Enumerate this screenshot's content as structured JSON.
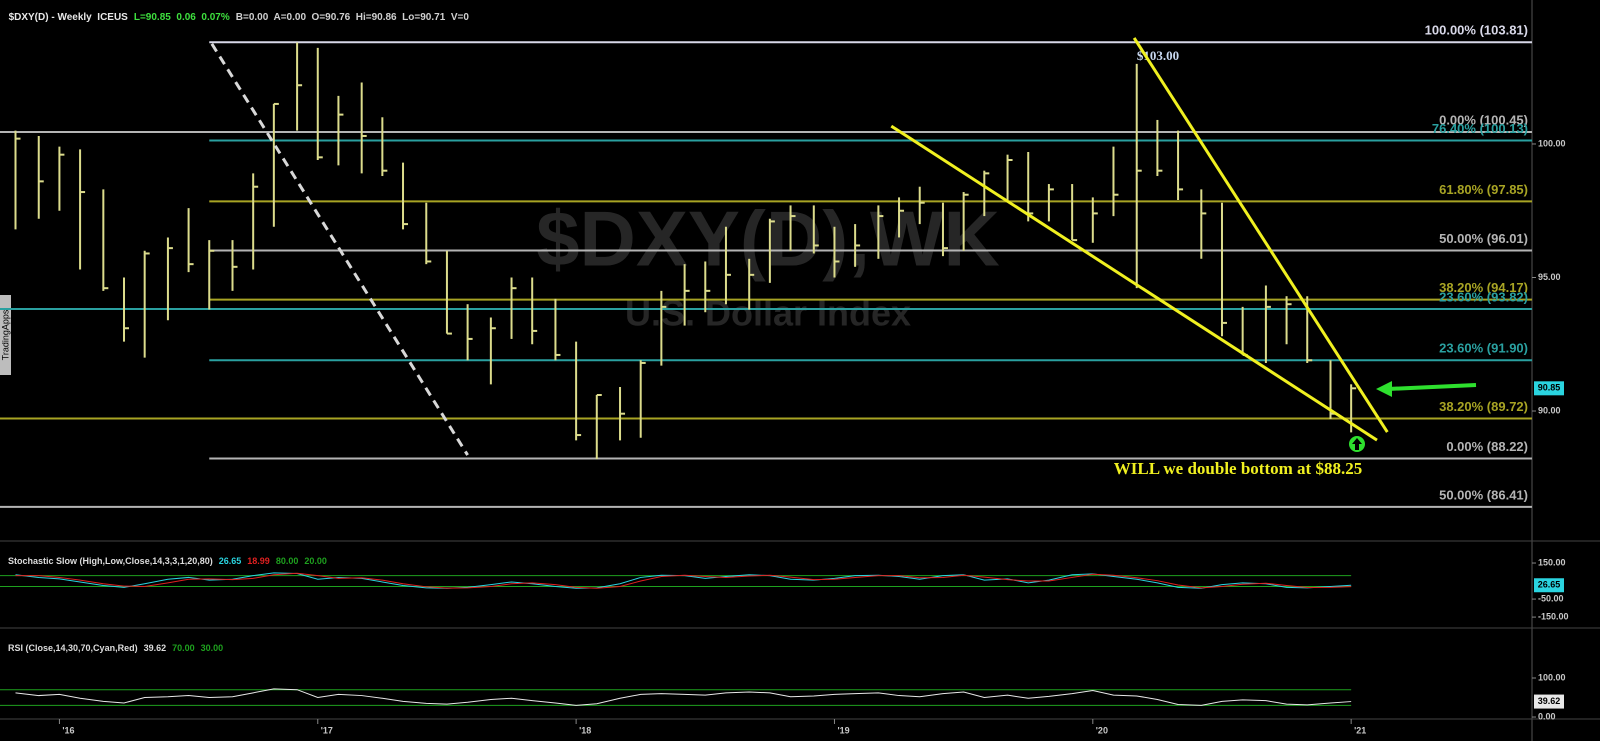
{
  "header": [
    {
      "text": "$DXY(D) - Weekly  ICEUS",
      "color": "#e8e8e8"
    },
    {
      "text": "L=90.85  0.06  0.07%",
      "color": "#3ee03e"
    },
    {
      "text": "B=0.00  A=0.00  O=90.76  Hi=90.86  Lo=90.71  V=0",
      "color": "#d0d0d0"
    }
  ],
  "side_label": "TradingApps",
  "watermark": {
    "symbol": "$DXY(D),WK",
    "name": "U.S. Dollar Index"
  },
  "annotations": [
    "$103.00",
    "WILL we double bottom at $88.25"
  ],
  "chart_data": [
    {
      "type": "ohlc",
      "color": "#dcdc8c",
      "last_color": "#2ad4e0",
      "x": [
        2015.83,
        2015.92,
        2016.0,
        2016.08,
        2016.17,
        2016.25,
        2016.33,
        2016.42,
        2016.5,
        2016.58,
        2016.67,
        2016.75,
        2016.83,
        2016.92,
        2017.0,
        2017.08,
        2017.17,
        2017.25,
        2017.33,
        2017.42,
        2017.5,
        2017.58,
        2017.67,
        2017.75,
        2017.83,
        2017.92,
        2018.0,
        2018.08,
        2018.17,
        2018.25,
        2018.33,
        2018.42,
        2018.5,
        2018.58,
        2018.67,
        2018.75,
        2018.83,
        2018.92,
        2019.0,
        2019.08,
        2019.17,
        2019.25,
        2019.33,
        2019.42,
        2019.5,
        2019.58,
        2019.67,
        2019.75,
        2019.83,
        2019.92,
        2020.0,
        2020.08,
        2020.17,
        2020.25,
        2020.33,
        2020.42,
        2020.5,
        2020.58,
        2020.67,
        2020.75,
        2020.83,
        2020.92,
        2021.0
      ],
      "high": [
        100.5,
        100.3,
        99.9,
        99.8,
        98.3,
        95.0,
        96.0,
        96.5,
        97.6,
        96.4,
        96.4,
        98.9,
        101.5,
        103.8,
        103.6,
        101.8,
        102.3,
        101.0,
        99.3,
        97.8,
        96.0,
        94.0,
        93.5,
        95.0,
        95.0,
        94.2,
        92.6,
        90.6,
        90.9,
        91.9,
        94.5,
        95.5,
        95.6,
        96.9,
        95.7,
        97.2,
        97.7,
        97.7,
        96.9,
        97.0,
        97.7,
        98.0,
        98.4,
        97.8,
        98.2,
        99.0,
        99.6,
        99.7,
        98.5,
        98.5,
        98.0,
        99.9,
        103.0,
        100.9,
        100.5,
        98.3,
        97.8,
        93.9,
        94.7,
        94.3,
        94.3,
        91.9,
        91.0
      ],
      "low": [
        96.8,
        97.2,
        97.5,
        95.3,
        94.5,
        92.6,
        92.0,
        93.4,
        95.2,
        93.8,
        94.5,
        95.3,
        96.9,
        100.5,
        99.4,
        99.2,
        98.9,
        98.8,
        96.8,
        95.5,
        92.9,
        91.9,
        91.0,
        92.7,
        92.5,
        91.9,
        88.9,
        88.2,
        88.9,
        89.0,
        91.7,
        93.2,
        93.7,
        94.0,
        93.8,
        94.8,
        96.0,
        95.9,
        95.0,
        95.4,
        95.7,
        96.5,
        97.0,
        95.8,
        96.0,
        97.3,
        97.9,
        97.1,
        97.1,
        96.4,
        96.3,
        97.3,
        94.6,
        98.8,
        97.9,
        95.7,
        92.8,
        92.1,
        91.8,
        92.5,
        91.8,
        89.7,
        89.2
      ],
      "close": [
        100.2,
        98.6,
        99.6,
        98.2,
        94.6,
        93.1,
        95.9,
        96.1,
        95.5,
        96.0,
        95.4,
        98.4,
        101.5,
        102.2,
        99.5,
        101.1,
        100.3,
        99.0,
        97.0,
        95.6,
        92.9,
        92.7,
        93.1,
        94.6,
        93.0,
        92.1,
        89.1,
        90.6,
        89.9,
        91.8,
        93.9,
        94.5,
        94.5,
        95.1,
        95.1,
        97.1,
        97.3,
        96.2,
        95.6,
        96.2,
        97.3,
        97.5,
        97.8,
        96.1,
        98.1,
        98.9,
        99.4,
        97.4,
        98.3,
        96.4,
        97.4,
        98.1,
        99.0,
        99.0,
        98.3,
        97.4,
        93.3,
        92.1,
        93.9,
        94.0,
        91.9,
        89.9,
        90.85
      ],
      "xlim": [
        2015.77,
        2021.7
      ],
      "xticks": [
        {
          "value": 2016,
          "label": "'16"
        },
        {
          "value": 2017,
          "label": "'17"
        },
        {
          "value": 2018,
          "label": "'18"
        },
        {
          "value": 2019,
          "label": "'19"
        },
        {
          "value": 2020,
          "label": "'20"
        },
        {
          "value": 2021,
          "label": "'21"
        }
      ],
      "ylim": [
        85.17,
        104.83
      ],
      "yticks": [
        {
          "value": 90,
          "label": "90.00"
        },
        {
          "value": 95,
          "label": "95.00"
        },
        {
          "value": 100,
          "label": "100.00"
        }
      ],
      "fib_levels": [
        {
          "label": "100.00% (103.81)",
          "value": 103.81,
          "from": 2016.58,
          "color": "#d8d8e8"
        },
        {
          "label": "0.00% (100.45)",
          "value": 100.45,
          "from": 2015.77,
          "color": "#b4b4b4"
        },
        {
          "label": "76.40% (100.13)",
          "value": 100.13,
          "from": 2016.58,
          "color": "#2aa0a0"
        },
        {
          "label": "61.80% (97.85)",
          "value": 97.85,
          "from": 2016.58,
          "color": "#a8a424"
        },
        {
          "label": "50.00% (96.01)",
          "value": 96.01,
          "from": 2016.58,
          "color": "#b4b4b4"
        },
        {
          "label": "38.20% (94.17)",
          "value": 94.17,
          "from": 2016.58,
          "color": "#a8a424"
        },
        {
          "label": "23.60% (93.82)",
          "value": 93.82,
          "from": 2015.77,
          "color": "#2aa0a0"
        },
        {
          "label": "23.60% (91.90)",
          "value": 91.9,
          "from": 2016.58,
          "color": "#2aa0a0"
        },
        {
          "label": "38.20% (89.72)",
          "value": 89.72,
          "from": 2015.77,
          "color": "#a8a424"
        },
        {
          "label": "0.00% (88.22)",
          "value": 88.22,
          "from": 2016.58,
          "color": "#b4b4b4"
        },
        {
          "label": "50.00% (86.41)",
          "value": 86.41,
          "from": 2015.77,
          "color": "#b4b4b4"
        }
      ],
      "trendlines": [
        {
          "from": [
            2016.59,
            103.75
          ],
          "to": [
            2017.58,
            88.35
          ],
          "color": "#d8d8d8",
          "dash": true
        },
        {
          "from": [
            2019.22,
            100.67
          ],
          "to": [
            2021.1,
            88.91
          ],
          "color": "#f0f020",
          "dash": false
        },
        {
          "from": [
            2020.16,
            103.97
          ],
          "to": [
            2021.14,
            89.21
          ],
          "color": "#f0f020",
          "dash": false
        }
      ]
    },
    {
      "type": "line",
      "title": "Stochastic Slow (High,Low,Close,14,3,3,1,20,80)",
      "series": [
        {
          "color": "#2ad4e0",
          "values": [
            85,
            70,
            62,
            45,
            25,
            15,
            35,
            60,
            70,
            55,
            60,
            80,
            95,
            92,
            60,
            70,
            65,
            45,
            25,
            12,
            10,
            15,
            30,
            45,
            35,
            20,
            10,
            12,
            35,
            70,
            82,
            80,
            65,
            75,
            85,
            80,
            60,
            55,
            65,
            80,
            82,
            75,
            60,
            80,
            85,
            55,
            62,
            40,
            55,
            85,
            90,
            75,
            60,
            40,
            15,
            10,
            30,
            40,
            35,
            15,
            12,
            20,
            26.65
          ]
        },
        {
          "color": "#e02020",
          "values": [
            80,
            80,
            70,
            55,
            35,
            22,
            20,
            40,
            60,
            62,
            58,
            65,
            85,
            93,
            80,
            65,
            68,
            55,
            35,
            18,
            11,
            12,
            20,
            35,
            40,
            30,
            15,
            10,
            20,
            50,
            75,
            82,
            75,
            70,
            78,
            82,
            72,
            58,
            60,
            70,
            80,
            80,
            68,
            70,
            82,
            72,
            58,
            50,
            50,
            70,
            88,
            82,
            68,
            52,
            28,
            12,
            20,
            32,
            38,
            25,
            14,
            15,
            18.99
          ]
        }
      ],
      "levels": [
        {
          "value": 80,
          "label": "80.00"
        },
        {
          "value": 20,
          "label": "20.00"
        }
      ],
      "level_color": "#1ea01e",
      "ylim": [
        -205,
        250
      ],
      "yticks": [
        {
          "value": 150,
          "label": "150.00"
        },
        {
          "value": -50,
          "label": "-50.00"
        },
        {
          "value": -150,
          "label": "-150.00"
        }
      ]
    },
    {
      "type": "line",
      "title": "RSI (Close,14,30,70,Cyan,Red)",
      "series": [
        {
          "color": "#e8e8e8",
          "values": [
            62,
            55,
            58,
            48,
            40,
            36,
            50,
            52,
            55,
            50,
            52,
            62,
            72,
            70,
            50,
            58,
            55,
            48,
            40,
            35,
            33,
            38,
            45,
            48,
            42,
            36,
            30,
            34,
            48,
            58,
            60,
            58,
            56,
            62,
            64,
            62,
            52,
            54,
            58,
            60,
            62,
            55,
            52,
            60,
            64,
            50,
            56,
            48,
            53,
            60,
            68,
            56,
            54,
            45,
            32,
            30,
            40,
            44,
            42,
            33,
            31,
            36,
            39.62
          ]
        }
      ],
      "levels": [
        {
          "value": 70,
          "label": "70.00"
        },
        {
          "value": 30,
          "label": "30.00"
        }
      ],
      "level_color": "#1ea01e",
      "ylim": [
        -2.5,
        223
      ],
      "yticks": [
        {
          "value": 100,
          "label": "100.00"
        },
        {
          "value": 0,
          "label": "0.00"
        }
      ]
    }
  ]
}
